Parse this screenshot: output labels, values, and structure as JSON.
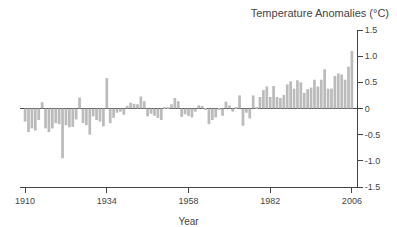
{
  "chart_data": {
    "type": "bar",
    "title": "Temperature Anomalies (°C)",
    "xlabel": "Year",
    "x": [
      1910,
      1911,
      1912,
      1913,
      1914,
      1915,
      1916,
      1917,
      1918,
      1919,
      1920,
      1921,
      1922,
      1923,
      1924,
      1925,
      1926,
      1927,
      1928,
      1929,
      1930,
      1931,
      1932,
      1933,
      1934,
      1935,
      1936,
      1937,
      1938,
      1939,
      1940,
      1941,
      1942,
      1943,
      1944,
      1945,
      1946,
      1947,
      1948,
      1949,
      1950,
      1951,
      1952,
      1953,
      1954,
      1955,
      1956,
      1957,
      1958,
      1959,
      1960,
      1961,
      1962,
      1963,
      1964,
      1965,
      1966,
      1967,
      1968,
      1969,
      1970,
      1971,
      1972,
      1973,
      1974,
      1975,
      1976,
      1977,
      1978,
      1979,
      1980,
      1981,
      1982,
      1983,
      1984,
      1985,
      1986,
      1987,
      1988,
      1989,
      1990,
      1991,
      1992,
      1993,
      1994,
      1995,
      1996,
      1997,
      1998,
      1999,
      2000,
      2001,
      2002,
      2003,
      2004,
      2005,
      2006
    ],
    "values": [
      -0.25,
      -0.45,
      -0.38,
      -0.42,
      -0.22,
      0.12,
      -0.38,
      -0.45,
      -0.38,
      -0.28,
      -0.3,
      -0.95,
      -0.32,
      -0.36,
      -0.35,
      -0.21,
      0.21,
      -0.28,
      -0.32,
      -0.5,
      -0.15,
      -0.22,
      -0.25,
      -0.34,
      0.58,
      -0.28,
      -0.18,
      -0.08,
      -0.06,
      -0.12,
      0.05,
      0.11,
      0.09,
      0.08,
      0.23,
      0.14,
      -0.15,
      -0.1,
      -0.14,
      -0.18,
      -0.22,
      0.02,
      0.03,
      0.08,
      0.2,
      0.14,
      -0.16,
      -0.11,
      -0.14,
      -0.17,
      -0.06,
      0.06,
      0.05,
      -0.03,
      -0.3,
      -0.22,
      -0.17,
      -0.02,
      -0.14,
      0.13,
      0.06,
      -0.06,
      0.02,
      0.25,
      -0.33,
      -0.08,
      -0.19,
      0.25,
      0.02,
      0.22,
      0.35,
      0.42,
      0.22,
      0.43,
      0.22,
      0.2,
      0.26,
      0.46,
      0.52,
      0.38,
      0.54,
      0.5,
      0.3,
      0.37,
      0.4,
      0.55,
      0.42,
      0.55,
      0.75,
      0.38,
      0.38,
      0.62,
      0.67,
      0.65,
      0.55,
      0.8,
      1.1
    ],
    "color": "#bbbbbb",
    "xlim": [
      1908.5,
      2007.5
    ],
    "xticks": [
      1910,
      1934,
      1958,
      1982,
      2006
    ],
    "ylim": [
      -1.5,
      1.5
    ],
    "yticks": [
      -1.5,
      {
        "value": -1.0,
        "label": "-1.0"
      },
      -0.5,
      0,
      0.5,
      {
        "value": 1.0,
        "label": "1.0"
      },
      1.5
    ],
    "grid": false
  }
}
